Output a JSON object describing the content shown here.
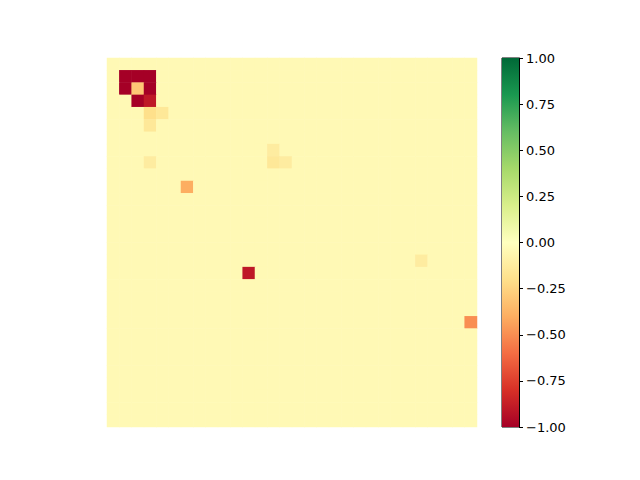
{
  "chart_data": {
    "type": "heatmap",
    "tick_labels": false,
    "cells": [
      [
        -0.04,
        -0.04,
        -0.04,
        -0.04,
        -0.04,
        -0.04,
        -0.04,
        -0.04,
        -0.04,
        -0.04,
        -0.04,
        -0.04,
        -0.04,
        -0.04,
        -0.04,
        -0.04,
        -0.04,
        -0.04,
        -0.04,
        -0.04,
        -0.04,
        -0.04,
        -0.04,
        -0.04,
        -0.04,
        -0.04,
        -0.04,
        -0.04,
        -0.04,
        -0.04
      ],
      [
        -0.04,
        -1,
        -1,
        -1,
        -0.04,
        -0.04,
        -0.04,
        -0.04,
        -0.04,
        -0.04,
        -0.04,
        -0.04,
        -0.04,
        -0.04,
        -0.04,
        -0.04,
        -0.04,
        -0.04,
        -0.04,
        -0.04,
        -0.04,
        -0.04,
        -0.04,
        -0.04,
        -0.04,
        -0.04,
        -0.04,
        -0.04,
        -0.04,
        -0.04
      ],
      [
        -0.04,
        -1,
        -0.3,
        -1,
        -0.04,
        -0.04,
        -0.04,
        -0.04,
        -0.04,
        -0.04,
        -0.04,
        -0.04,
        -0.04,
        -0.04,
        -0.04,
        -0.04,
        -0.04,
        -0.04,
        -0.04,
        -0.04,
        -0.04,
        -0.04,
        -0.04,
        -0.04,
        -0.04,
        -0.04,
        -0.04,
        -0.04,
        -0.04,
        -0.04
      ],
      [
        -0.04,
        -0.04,
        -1,
        -0.9,
        -0.04,
        -0.04,
        -0.04,
        -0.04,
        -0.04,
        -0.04,
        -0.04,
        -0.04,
        -0.04,
        -0.04,
        -0.04,
        -0.04,
        -0.04,
        -0.04,
        -0.04,
        -0.04,
        -0.04,
        -0.04,
        -0.04,
        -0.04,
        -0.04,
        -0.04,
        -0.04,
        -0.04,
        -0.04,
        -0.04
      ],
      [
        -0.04,
        -0.04,
        -0.04,
        -0.2,
        -0.15,
        -0.04,
        -0.04,
        -0.04,
        -0.04,
        -0.04,
        -0.04,
        -0.04,
        -0.04,
        -0.04,
        -0.04,
        -0.04,
        -0.04,
        -0.04,
        -0.04,
        -0.04,
        -0.04,
        -0.04,
        -0.04,
        -0.04,
        -0.04,
        -0.04,
        -0.04,
        -0.04,
        -0.04,
        -0.04
      ],
      [
        -0.04,
        -0.04,
        -0.04,
        -0.15,
        -0.04,
        -0.04,
        -0.04,
        -0.04,
        -0.04,
        -0.04,
        -0.04,
        -0.04,
        -0.04,
        -0.04,
        -0.04,
        -0.04,
        -0.04,
        -0.04,
        -0.04,
        -0.04,
        -0.04,
        -0.04,
        -0.04,
        -0.04,
        -0.04,
        -0.04,
        -0.04,
        -0.04,
        -0.04,
        -0.04
      ],
      [
        -0.04,
        -0.04,
        -0.04,
        -0.04,
        -0.04,
        -0.04,
        -0.04,
        -0.04,
        -0.04,
        -0.04,
        -0.04,
        -0.04,
        -0.04,
        -0.04,
        -0.04,
        -0.04,
        -0.04,
        -0.04,
        -0.04,
        -0.04,
        -0.04,
        -0.04,
        -0.04,
        -0.04,
        -0.04,
        -0.04,
        -0.04,
        -0.04,
        -0.04,
        -0.04
      ],
      [
        -0.04,
        -0.04,
        -0.04,
        -0.04,
        -0.04,
        -0.04,
        -0.04,
        -0.04,
        -0.04,
        -0.04,
        -0.04,
        -0.04,
        -0.04,
        -0.12,
        -0.04,
        -0.04,
        -0.04,
        -0.04,
        -0.04,
        -0.04,
        -0.04,
        -0.04,
        -0.04,
        -0.04,
        -0.04,
        -0.04,
        -0.04,
        -0.04,
        -0.04,
        -0.04
      ],
      [
        -0.04,
        -0.04,
        -0.04,
        -0.12,
        -0.04,
        -0.04,
        -0.04,
        -0.04,
        -0.04,
        -0.04,
        -0.04,
        -0.04,
        -0.04,
        -0.15,
        -0.12,
        -0.04,
        -0.04,
        -0.04,
        -0.04,
        -0.04,
        -0.04,
        -0.04,
        -0.04,
        -0.04,
        -0.04,
        -0.04,
        -0.04,
        -0.04,
        -0.04,
        -0.04
      ],
      [
        -0.04,
        -0.04,
        -0.04,
        -0.04,
        -0.04,
        -0.04,
        -0.04,
        -0.04,
        -0.04,
        -0.04,
        -0.04,
        -0.04,
        -0.04,
        -0.04,
        -0.04,
        -0.04,
        -0.04,
        -0.04,
        -0.04,
        -0.04,
        -0.04,
        -0.04,
        -0.04,
        -0.04,
        -0.04,
        -0.04,
        -0.04,
        -0.04,
        -0.04,
        -0.04
      ],
      [
        -0.04,
        -0.04,
        -0.04,
        -0.04,
        -0.04,
        -0.04,
        -0.4,
        -0.04,
        -0.04,
        -0.04,
        -0.04,
        -0.04,
        -0.04,
        -0.04,
        -0.04,
        -0.04,
        -0.04,
        -0.04,
        -0.04,
        -0.04,
        -0.04,
        -0.04,
        -0.04,
        -0.04,
        -0.04,
        -0.04,
        -0.04,
        -0.04,
        -0.04,
        -0.04
      ],
      [
        -0.04,
        -0.04,
        -0.04,
        -0.04,
        -0.04,
        -0.04,
        -0.04,
        -0.04,
        -0.04,
        -0.04,
        -0.04,
        -0.04,
        -0.04,
        -0.04,
        -0.04,
        -0.04,
        -0.04,
        -0.04,
        -0.04,
        -0.04,
        -0.04,
        -0.04,
        -0.04,
        -0.04,
        -0.04,
        -0.04,
        -0.04,
        -0.04,
        -0.04,
        -0.04
      ],
      [
        -0.04,
        -0.04,
        -0.04,
        -0.04,
        -0.04,
        -0.04,
        -0.04,
        -0.04,
        -0.04,
        -0.04,
        -0.04,
        -0.04,
        -0.04,
        -0.04,
        -0.04,
        -0.04,
        -0.04,
        -0.04,
        -0.04,
        -0.04,
        -0.04,
        -0.04,
        -0.04,
        -0.04,
        -0.04,
        -0.04,
        -0.04,
        -0.04,
        -0.04,
        -0.04
      ],
      [
        -0.04,
        -0.04,
        -0.04,
        -0.04,
        -0.04,
        -0.04,
        -0.04,
        -0.04,
        -0.04,
        -0.04,
        -0.04,
        -0.04,
        -0.04,
        -0.04,
        -0.04,
        -0.04,
        -0.04,
        -0.04,
        -0.04,
        -0.04,
        -0.04,
        -0.04,
        -0.04,
        -0.04,
        -0.04,
        -0.04,
        -0.04,
        -0.04,
        -0.04,
        -0.04
      ],
      [
        -0.04,
        -0.04,
        -0.04,
        -0.04,
        -0.04,
        -0.04,
        -0.04,
        -0.04,
        -0.04,
        -0.04,
        -0.04,
        -0.04,
        -0.04,
        -0.04,
        -0.04,
        -0.04,
        -0.04,
        -0.04,
        -0.04,
        -0.04,
        -0.04,
        -0.04,
        -0.04,
        -0.04,
        -0.04,
        -0.04,
        -0.04,
        -0.04,
        -0.04,
        -0.04
      ],
      [
        -0.04,
        -0.04,
        -0.04,
        -0.04,
        -0.04,
        -0.04,
        -0.04,
        -0.04,
        -0.04,
        -0.04,
        -0.04,
        -0.04,
        -0.04,
        -0.04,
        -0.04,
        -0.04,
        -0.04,
        -0.04,
        -0.04,
        -0.04,
        -0.04,
        -0.04,
        -0.04,
        -0.04,
        -0.04,
        -0.04,
        -0.04,
        -0.04,
        -0.04,
        -0.04
      ],
      [
        -0.04,
        -0.04,
        -0.04,
        -0.04,
        -0.04,
        -0.04,
        -0.04,
        -0.04,
        -0.04,
        -0.04,
        -0.04,
        -0.04,
        -0.04,
        -0.04,
        -0.04,
        -0.04,
        -0.04,
        -0.04,
        -0.04,
        -0.04,
        -0.04,
        -0.04,
        -0.04,
        -0.04,
        -0.04,
        -0.12,
        -0.04,
        -0.04,
        -0.04,
        -0.04
      ],
      [
        -0.04,
        -0.04,
        -0.04,
        -0.04,
        -0.04,
        -0.04,
        -0.04,
        -0.04,
        -0.04,
        -0.04,
        -0.04,
        -0.9,
        -0.04,
        -0.04,
        -0.04,
        -0.04,
        -0.04,
        -0.04,
        -0.04,
        -0.04,
        -0.04,
        -0.04,
        -0.04,
        -0.04,
        -0.04,
        -0.04,
        -0.04,
        -0.04,
        -0.04,
        -0.04
      ],
      [
        -0.04,
        -0.04,
        -0.04,
        -0.04,
        -0.04,
        -0.04,
        -0.04,
        -0.04,
        -0.04,
        -0.04,
        -0.04,
        -0.04,
        -0.04,
        -0.04,
        -0.04,
        -0.04,
        -0.04,
        -0.04,
        -0.04,
        -0.04,
        -0.04,
        -0.04,
        -0.04,
        -0.04,
        -0.04,
        -0.04,
        -0.04,
        -0.04,
        -0.04,
        -0.04
      ],
      [
        -0.04,
        -0.04,
        -0.04,
        -0.04,
        -0.04,
        -0.04,
        -0.04,
        -0.04,
        -0.04,
        -0.04,
        -0.04,
        -0.04,
        -0.04,
        -0.04,
        -0.04,
        -0.04,
        -0.04,
        -0.04,
        -0.04,
        -0.04,
        -0.04,
        -0.04,
        -0.04,
        -0.04,
        -0.04,
        -0.04,
        -0.04,
        -0.04,
        -0.04,
        -0.04
      ],
      [
        -0.04,
        -0.04,
        -0.04,
        -0.04,
        -0.04,
        -0.04,
        -0.04,
        -0.04,
        -0.04,
        -0.04,
        -0.04,
        -0.04,
        -0.04,
        -0.04,
        -0.04,
        -0.04,
        -0.04,
        -0.04,
        -0.04,
        -0.04,
        -0.04,
        -0.04,
        -0.04,
        -0.04,
        -0.04,
        -0.04,
        -0.04,
        -0.04,
        -0.04,
        -0.04
      ],
      [
        -0.04,
        -0.04,
        -0.04,
        -0.04,
        -0.04,
        -0.04,
        -0.04,
        -0.04,
        -0.04,
        -0.04,
        -0.04,
        -0.04,
        -0.04,
        -0.04,
        -0.04,
        -0.04,
        -0.04,
        -0.04,
        -0.04,
        -0.04,
        -0.04,
        -0.04,
        -0.04,
        -0.04,
        -0.04,
        -0.04,
        -0.04,
        -0.04,
        -0.04,
        -0.5
      ],
      [
        -0.04,
        -0.04,
        -0.04,
        -0.04,
        -0.04,
        -0.04,
        -0.04,
        -0.04,
        -0.04,
        -0.04,
        -0.04,
        -0.04,
        -0.04,
        -0.04,
        -0.04,
        -0.04,
        -0.04,
        -0.04,
        -0.04,
        -0.04,
        -0.04,
        -0.04,
        -0.04,
        -0.04,
        -0.04,
        -0.04,
        -0.04,
        -0.04,
        -0.04,
        -0.04
      ],
      [
        -0.04,
        -0.04,
        -0.04,
        -0.04,
        -0.04,
        -0.04,
        -0.04,
        -0.04,
        -0.04,
        -0.04,
        -0.04,
        -0.04,
        -0.04,
        -0.04,
        -0.04,
        -0.04,
        -0.04,
        -0.04,
        -0.04,
        -0.04,
        -0.04,
        -0.04,
        -0.04,
        -0.04,
        -0.04,
        -0.04,
        -0.04,
        -0.04,
        -0.04,
        -0.04
      ],
      [
        -0.04,
        -0.04,
        -0.04,
        -0.04,
        -0.04,
        -0.04,
        -0.04,
        -0.04,
        -0.04,
        -0.04,
        -0.04,
        -0.04,
        -0.04,
        -0.04,
        -0.04,
        -0.04,
        -0.04,
        -0.04,
        -0.04,
        -0.04,
        -0.04,
        -0.04,
        -0.04,
        -0.04,
        -0.04,
        -0.04,
        -0.04,
        -0.04,
        -0.04,
        -0.04
      ],
      [
        -0.04,
        -0.04,
        -0.04,
        -0.04,
        -0.04,
        -0.04,
        -0.04,
        -0.04,
        -0.04,
        -0.04,
        -0.04,
        -0.04,
        -0.04,
        -0.04,
        -0.04,
        -0.04,
        -0.04,
        -0.04,
        -0.04,
        -0.04,
        -0.04,
        -0.04,
        -0.04,
        -0.04,
        -0.04,
        -0.04,
        -0.04,
        -0.04,
        -0.04,
        -0.04
      ],
      [
        -0.04,
        -0.04,
        -0.04,
        -0.04,
        -0.04,
        -0.04,
        -0.04,
        -0.04,
        -0.04,
        -0.04,
        -0.04,
        -0.04,
        -0.04,
        -0.04,
        -0.04,
        -0.04,
        -0.04,
        -0.04,
        -0.04,
        -0.04,
        -0.04,
        -0.04,
        -0.04,
        -0.04,
        -0.04,
        -0.04,
        -0.04,
        -0.04,
        -0.04,
        -0.04
      ],
      [
        -0.04,
        -0.04,
        -0.04,
        -0.04,
        -0.04,
        -0.04,
        -0.04,
        -0.04,
        -0.04,
        -0.04,
        -0.04,
        -0.04,
        -0.04,
        -0.04,
        -0.04,
        -0.04,
        -0.04,
        -0.04,
        -0.04,
        -0.04,
        -0.04,
        -0.04,
        -0.04,
        -0.04,
        -0.04,
        -0.04,
        -0.04,
        -0.04,
        -0.04,
        -0.04
      ],
      [
        -0.04,
        -0.04,
        -0.04,
        -0.04,
        -0.04,
        -0.04,
        -0.04,
        -0.04,
        -0.04,
        -0.04,
        -0.04,
        -0.04,
        -0.04,
        -0.04,
        -0.04,
        -0.04,
        -0.04,
        -0.04,
        -0.04,
        -0.04,
        -0.04,
        -0.04,
        -0.04,
        -0.04,
        -0.04,
        -0.04,
        -0.04,
        -0.04,
        -0.04,
        -0.04
      ],
      [
        -0.04,
        -0.04,
        -0.04,
        -0.04,
        -0.04,
        -0.04,
        -0.04,
        -0.04,
        -0.04,
        -0.04,
        -0.04,
        -0.04,
        -0.04,
        -0.04,
        -0.04,
        -0.04,
        -0.04,
        -0.04,
        -0.04,
        -0.04,
        -0.04,
        -0.04,
        -0.04,
        -0.04,
        -0.04,
        -0.04,
        -0.04,
        -0.04,
        -0.04,
        -0.04
      ]
    ],
    "colorbar": {
      "range": [
        -1,
        1
      ],
      "ticks": [
        {
          "value": -1,
          "label": "−1.00"
        },
        {
          "value": -0.75,
          "label": "−0.75"
        },
        {
          "value": -0.5,
          "label": "−0.50"
        },
        {
          "value": -0.25,
          "label": "−0.25"
        },
        {
          "value": 0,
          "label": "0.00"
        },
        {
          "value": 0.25,
          "label": "0.25"
        },
        {
          "value": 0.5,
          "label": "0.50"
        },
        {
          "value": 0.75,
          "label": "0.75"
        },
        {
          "value": 1,
          "label": "1.00"
        }
      ]
    }
  }
}
